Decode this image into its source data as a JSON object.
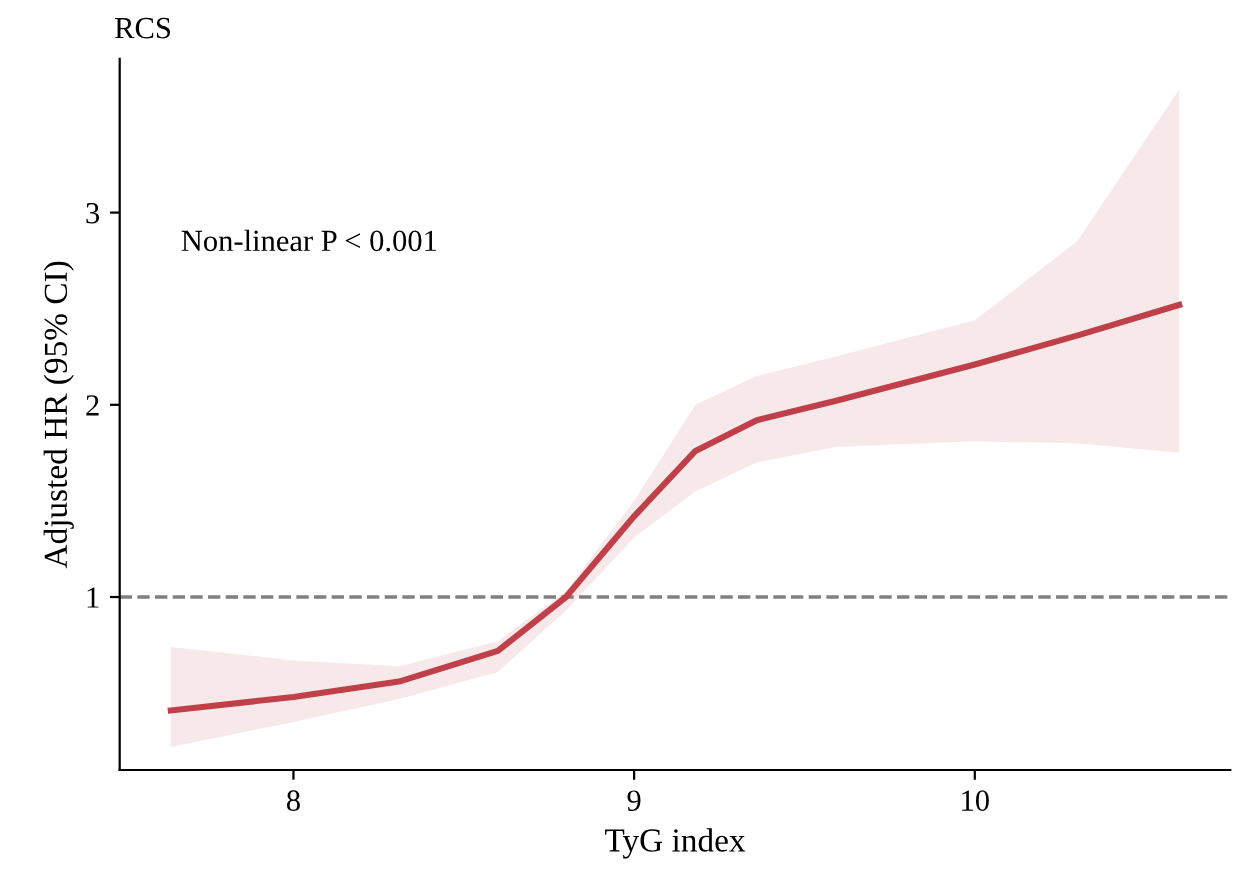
{
  "chart_data": {
    "type": "line",
    "title": "RCS",
    "xlabel": "TyG index",
    "ylabel": "Adjusted HR (95% CI)",
    "annotations": [
      "Non-linear P < 0.001"
    ],
    "x": [
      7.64,
      8.0,
      8.31,
      8.6,
      8.8,
      9.0,
      9.18,
      9.36,
      9.59,
      10.0,
      10.3,
      10.6
    ],
    "series": [
      {
        "color": "#c0404a",
        "values": [
          0.41,
          0.48,
          0.56,
          0.72,
          1.0,
          1.42,
          1.76,
          1.92,
          2.02,
          2.21,
          2.36,
          2.52
        ],
        "lower": [
          0.22,
          0.35,
          0.47,
          0.61,
          0.93,
          1.31,
          1.55,
          1.7,
          1.78,
          1.81,
          1.8,
          1.75
        ],
        "upper": [
          0.74,
          0.67,
          0.64,
          0.77,
          1.03,
          1.5,
          2.0,
          2.15,
          2.25,
          2.44,
          2.85,
          3.64
        ]
      }
    ],
    "xlim": [
      7.49,
      10.75
    ],
    "ylim": [
      0.1,
      3.8
    ],
    "xticks": [
      8,
      9,
      10
    ],
    "yticks": [
      1,
      2,
      3
    ],
    "ref_lines": [
      {
        "axis": "y",
        "value": 1,
        "color": "#808080",
        "line_style": "dashed"
      }
    ],
    "grid": false,
    "legend": false,
    "marker": "none",
    "line_style": "solid"
  }
}
